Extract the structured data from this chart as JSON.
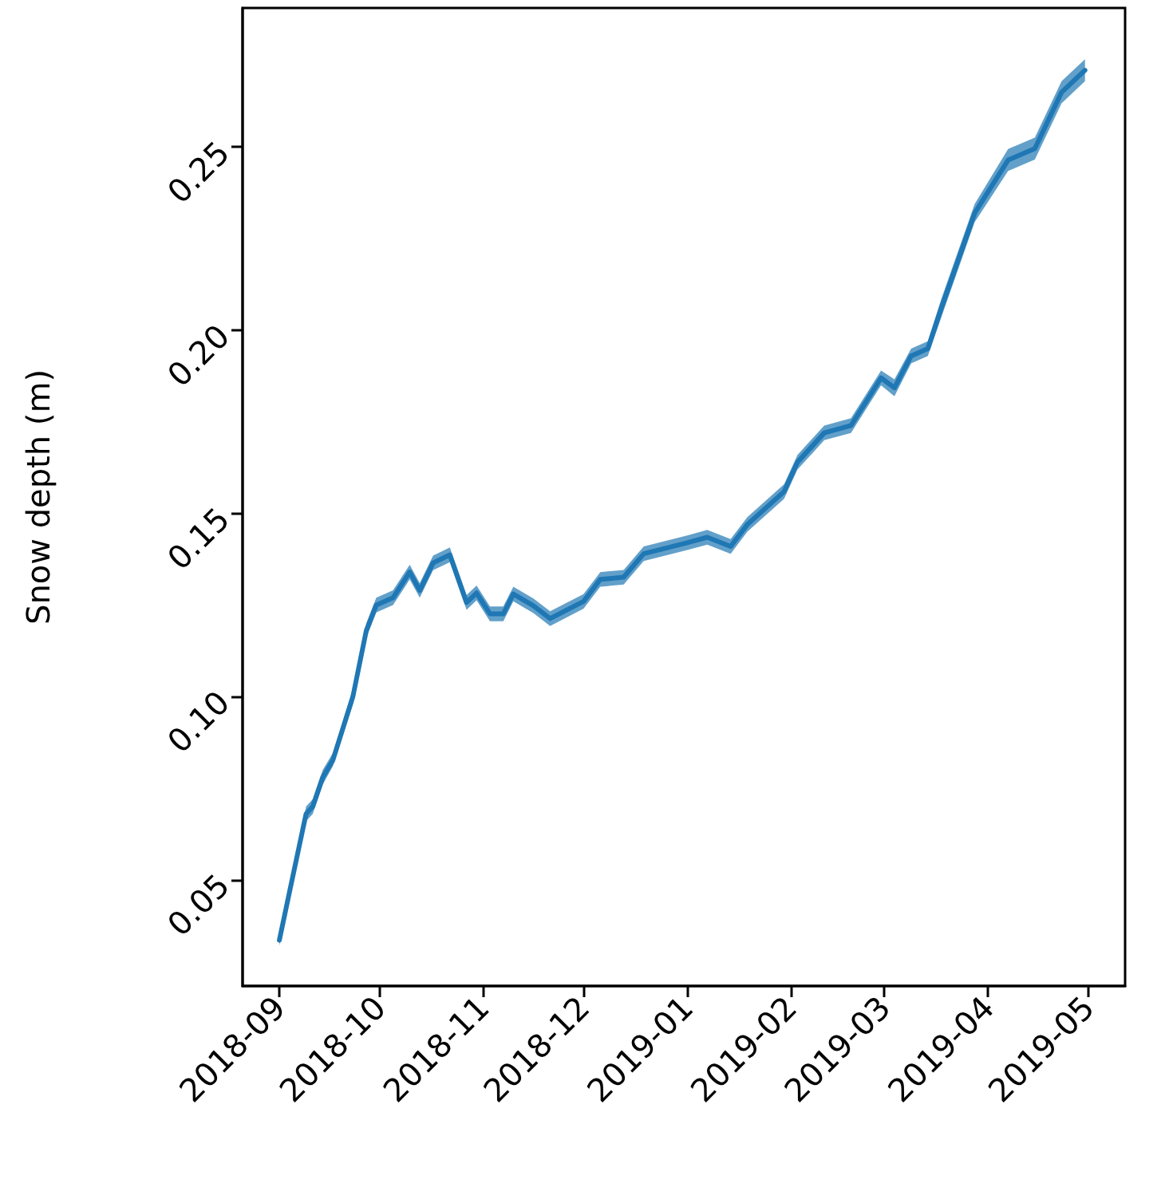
{
  "chart_data": {
    "type": "line",
    "ylabel": "Snow depth (m)",
    "x": [
      "2018-09-01",
      "2018-09-04",
      "2018-09-09",
      "2018-09-11",
      "2018-09-14",
      "2018-09-17",
      "2018-09-23",
      "2018-09-27",
      "2018-09-30",
      "2018-10-05",
      "2018-10-10",
      "2018-10-13",
      "2018-10-17",
      "2018-10-22",
      "2018-10-27",
      "2018-10-30",
      "2018-11-03",
      "2018-11-07",
      "2018-11-10",
      "2018-11-16",
      "2018-11-21",
      "2018-12-01",
      "2018-12-06",
      "2018-12-13",
      "2018-12-19",
      "2019-01-01",
      "2019-01-07",
      "2019-01-14",
      "2019-01-19",
      "2019-01-30",
      "2019-02-03",
      "2019-02-11",
      "2019-02-19",
      "2019-02-28",
      "2019-03-04",
      "2019-03-09",
      "2019-03-14",
      "2019-03-18",
      "2019-03-28",
      "2019-04-07",
      "2019-04-15",
      "2019-04-23",
      "2019-04-30"
    ],
    "series": [
      {
        "color": "#1f77b4",
        "values": [
          0.0335,
          0.0465,
          0.068,
          0.07,
          0.078,
          0.0826,
          0.1,
          0.118,
          0.125,
          0.127,
          0.134,
          0.129,
          0.1365,
          0.1387,
          0.1257,
          0.1283,
          0.1226,
          0.1226,
          0.128,
          0.1248,
          0.1213,
          0.126,
          0.132,
          0.1326,
          0.139,
          0.142,
          0.1435,
          0.141,
          0.147,
          0.156,
          0.164,
          0.172,
          0.174,
          0.187,
          0.1843,
          0.193,
          0.195,
          0.206,
          0.232,
          0.2465,
          0.2496,
          0.265,
          0.271
        ],
        "lower": [
          0.032,
          0.045,
          0.066,
          0.068,
          0.076,
          0.081,
          0.098,
          0.116,
          0.123,
          0.125,
          0.132,
          0.127,
          0.1345,
          0.1367,
          0.1237,
          0.1263,
          0.1206,
          0.1206,
          0.126,
          0.1228,
          0.1193,
          0.124,
          0.13,
          0.1306,
          0.137,
          0.14,
          0.1415,
          0.139,
          0.145,
          0.154,
          0.162,
          0.17,
          0.172,
          0.185,
          0.182,
          0.191,
          0.193,
          0.2035,
          0.2295,
          0.2435,
          0.2466,
          0.262,
          0.268
        ],
        "upper": [
          0.035,
          0.048,
          0.07,
          0.072,
          0.08,
          0.0846,
          0.102,
          0.12,
          0.127,
          0.129,
          0.136,
          0.131,
          0.1385,
          0.1407,
          0.1277,
          0.1303,
          0.1246,
          0.1246,
          0.13,
          0.1268,
          0.1233,
          0.128,
          0.134,
          0.1346,
          0.141,
          0.144,
          0.1455,
          0.143,
          0.149,
          0.158,
          0.166,
          0.174,
          0.176,
          0.189,
          0.1866,
          0.195,
          0.197,
          0.2085,
          0.2345,
          0.2495,
          0.2526,
          0.268,
          0.274
        ]
      }
    ],
    "xlim": [
      "2018-08-21",
      "2019-05-12"
    ],
    "xticks": [
      "2018-09",
      "2018-10",
      "2018-11",
      "2018-12",
      "2019-01",
      "2019-02",
      "2019-03",
      "2019-04",
      "2019-05"
    ],
    "ylim": [
      0.021,
      0.288
    ],
    "yticks": [
      0.05,
      {
        "value": 0.1,
        "label": "0.10"
      },
      0.15,
      {
        "value": 0.2,
        "label": "0.20"
      },
      0.25
    ],
    "marker": "none",
    "line_style": "solid"
  }
}
